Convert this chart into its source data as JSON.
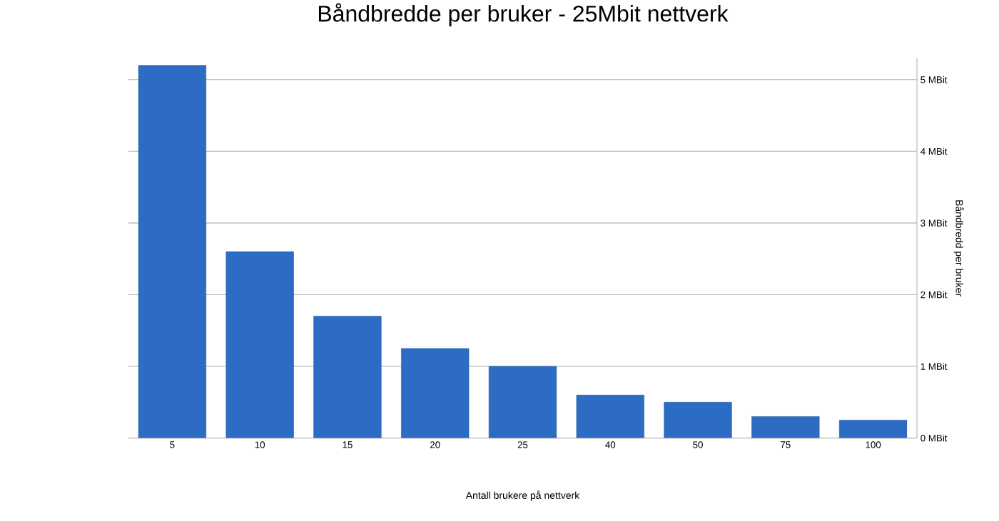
{
  "chart_data": {
    "type": "bar",
    "title": "Båndbredde per bruker - 25Mbit nettverk",
    "xlabel": "Antall brukere på nettverk",
    "ylabel": "Båndbredd per bruker",
    "categories": [
      "5",
      "10",
      "15",
      "20",
      "25",
      "40",
      "50",
      "75",
      "100"
    ],
    "values": [
      5.2,
      2.6,
      1.7,
      1.25,
      1.0,
      0.6,
      0.5,
      0.3,
      0.25
    ],
    "color": "#2c6cc4",
    "ylim": [
      0,
      5.3
    ],
    "yticks": [
      {
        "value": 0,
        "label": "0 MBit"
      },
      {
        "value": 1,
        "label": "1 MBit"
      },
      {
        "value": 2,
        "label": "2 MBit"
      },
      {
        "value": 3,
        "label": "3 MBit"
      },
      {
        "value": 4,
        "label": "4 MBit"
      },
      {
        "value": 5,
        "label": "5 MBit"
      }
    ],
    "grid": "y"
  }
}
